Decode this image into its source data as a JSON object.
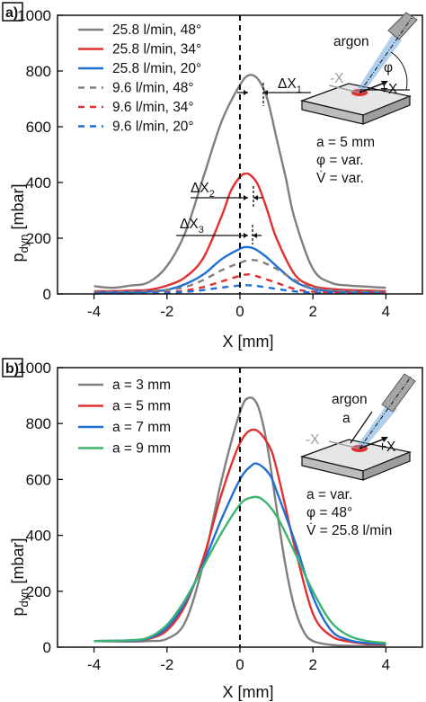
{
  "chart_data": [
    {
      "type": "line",
      "panel": "a)",
      "xlabel": "X [mm]",
      "ylabel": "p",
      "ylabel_sub": "dyn",
      "ylabel_unit": " [mbar]",
      "xlim": [
        -5,
        5
      ],
      "ylim": [
        0,
        1000
      ],
      "xticks": [
        -4,
        -2,
        0,
        2,
        4
      ],
      "yticks": [
        0,
        200,
        400,
        600,
        800,
        1000
      ],
      "x_tick_labels": [
        "-4",
        "-2",
        "0",
        "2",
        "4"
      ],
      "y_tick_labels": [
        "0",
        "200",
        "400",
        "600",
        "800",
        "1000"
      ],
      "reference_line_x": 0,
      "legend_placement": "top-left",
      "series": [
        {
          "name": "25.8 l/min, 48°",
          "color": "#7f7f7f",
          "dash": "solid",
          "x": [
            -4.0,
            -3.5,
            -3.0,
            -2.5,
            -2.0,
            -1.5,
            -1.0,
            -0.5,
            0.0,
            0.25,
            0.5,
            0.75,
            1.0,
            1.25,
            1.5,
            2.0,
            2.5,
            3.0,
            3.5,
            4.0
          ],
          "y": [
            28,
            22,
            30,
            42,
            100,
            220,
            420,
            620,
            750,
            785,
            770,
            700,
            560,
            420,
            270,
            90,
            40,
            30,
            26,
            22
          ]
        },
        {
          "name": "25.8 l/min, 34°",
          "color": "#e03030",
          "dash": "solid",
          "x": [
            -4.0,
            -3.5,
            -3.0,
            -2.5,
            -2.0,
            -1.5,
            -1.0,
            -0.5,
            -0.25,
            0.0,
            0.15,
            0.3,
            0.5,
            0.75,
            1.0,
            1.5,
            2.0,
            2.5,
            3.0,
            3.5,
            4.0
          ],
          "y": [
            10,
            10,
            12,
            15,
            30,
            60,
            130,
            280,
            370,
            420,
            432,
            425,
            390,
            300,
            200,
            70,
            28,
            18,
            14,
            12,
            10
          ]
        },
        {
          "name": "25.8 l/min, 20°",
          "color": "#1f6fd6",
          "dash": "solid",
          "x": [
            -4.0,
            -3.0,
            -2.5,
            -2.0,
            -1.5,
            -1.0,
            -0.5,
            0.0,
            0.2,
            0.4,
            0.7,
            1.0,
            1.5,
            2.0,
            2.5,
            3.0,
            4.0
          ],
          "y": [
            5,
            6,
            8,
            15,
            35,
            70,
            125,
            162,
            168,
            162,
            135,
            100,
            45,
            18,
            10,
            7,
            5
          ]
        },
        {
          "name": "9.6 l/min, 48°",
          "color": "#7f7f7f",
          "dash": "dashed",
          "x": [
            -4.0,
            -3.0,
            -2.0,
            -1.5,
            -1.0,
            -0.5,
            0.0,
            0.3,
            0.6,
            1.0,
            1.5,
            2.0,
            3.0,
            4.0
          ],
          "y": [
            8,
            9,
            14,
            25,
            50,
            85,
            112,
            122,
            115,
            90,
            50,
            22,
            10,
            8
          ]
        },
        {
          "name": "9.6 l/min, 34°",
          "color": "#e03030",
          "dash": "dashed",
          "x": [
            -4.0,
            -3.0,
            -2.0,
            -1.5,
            -1.0,
            -0.5,
            0.0,
            0.25,
            0.5,
            1.0,
            1.5,
            2.0,
            3.0,
            4.0
          ],
          "y": [
            3,
            3,
            6,
            12,
            25,
            45,
            65,
            70,
            62,
            40,
            18,
            8,
            4,
            3
          ]
        },
        {
          "name": "9.6 l/min, 20°",
          "color": "#1f6fd6",
          "dash": "dashed",
          "x": [
            -4.0,
            -3.0,
            -2.0,
            -1.5,
            -1.0,
            -0.5,
            0.0,
            0.25,
            0.5,
            1.0,
            1.5,
            2.0,
            3.0,
            4.0
          ],
          "y": [
            2,
            2,
            4,
            7,
            14,
            23,
            30,
            31,
            28,
            18,
            9,
            5,
            3,
            2
          ]
        }
      ],
      "shift_labels": [
        {
          "base": "ΔX",
          "sub": "1"
        },
        {
          "base": "ΔX",
          "sub": "2"
        },
        {
          "base": "ΔX",
          "sub": "3"
        }
      ],
      "inset": {
        "gas": "argon",
        "axis_minus": "-X",
        "axis_plus": "+X",
        "angle": "φ",
        "params": [
          "a = 5 mm",
          "φ = var.",
          "V̇ = var."
        ]
      },
      "colors": {
        "axes": "#111111",
        "inset_plate": "#d9d9d9",
        "torch": "#a0a0a0",
        "gas_jet": "#6fa8dc",
        "spot": "#e03030"
      }
    },
    {
      "type": "line",
      "panel": "b)",
      "xlabel": "X [mm]",
      "ylabel": "p",
      "ylabel_sub": "dyn",
      "ylabel_unit": " [mbar]",
      "xlim": [
        -5,
        5
      ],
      "ylim": [
        0,
        1000
      ],
      "xticks": [
        -4,
        -2,
        0,
        2,
        4
      ],
      "yticks": [
        0,
        200,
        400,
        600,
        800,
        1000
      ],
      "x_tick_labels": [
        "-4",
        "-2",
        "0",
        "2",
        "4"
      ],
      "y_tick_labels": [
        "0",
        "200",
        "400",
        "600",
        "800",
        "1000"
      ],
      "reference_line_x": 0,
      "legend_placement": "top-left",
      "series": [
        {
          "name": "a = 3 mm",
          "color": "#7f7f7f",
          "dash": "solid",
          "x": [
            -4.0,
            -3.0,
            -2.5,
            -2.0,
            -1.5,
            -1.0,
            -0.5,
            0.0,
            0.25,
            0.5,
            0.75,
            1.0,
            1.25,
            1.5,
            1.75,
            2.0,
            2.5,
            3.0,
            4.0
          ],
          "y": [
            22,
            20,
            22,
            30,
            90,
            300,
            600,
            840,
            892,
            860,
            720,
            500,
            290,
            140,
            55,
            22,
            8,
            5,
            4
          ]
        },
        {
          "name": "a = 5 mm",
          "color": "#e03030",
          "dash": "solid",
          "x": [
            -4.0,
            -3.0,
            -2.5,
            -2.0,
            -1.5,
            -1.0,
            -0.5,
            0.0,
            0.4,
            0.8,
            1.0,
            1.25,
            1.5,
            2.0,
            2.5,
            3.0,
            3.5,
            4.0
          ],
          "y": [
            22,
            24,
            30,
            60,
            150,
            320,
            550,
            730,
            778,
            720,
            640,
            500,
            360,
            120,
            40,
            20,
            12,
            10
          ]
        },
        {
          "name": "a = 7 mm",
          "color": "#1f6fd6",
          "dash": "solid",
          "x": [
            -4.0,
            -3.0,
            -2.5,
            -2.0,
            -1.5,
            -1.0,
            -0.5,
            0.0,
            0.3,
            0.5,
            0.8,
            1.0,
            1.5,
            2.0,
            2.5,
            3.0,
            3.5,
            4.0
          ],
          "y": [
            22,
            24,
            32,
            70,
            160,
            300,
            460,
            600,
            648,
            655,
            620,
            560,
            380,
            180,
            60,
            25,
            15,
            12
          ]
        },
        {
          "name": "a = 9 mm",
          "color": "#3cb371",
          "dash": "solid",
          "x": [
            -4.0,
            -3.0,
            -2.5,
            -2.0,
            -1.5,
            -1.0,
            -0.5,
            0.0,
            0.3,
            0.6,
            1.0,
            1.5,
            2.0,
            2.5,
            3.0,
            3.5,
            4.0
          ],
          "y": [
            22,
            25,
            35,
            80,
            170,
            290,
            410,
            510,
            535,
            530,
            470,
            340,
            200,
            90,
            40,
            22,
            15
          ]
        }
      ],
      "inset": {
        "gas": "argon",
        "distance": "a",
        "axis_minus": "-X",
        "axis_plus": "+X",
        "params": [
          "a = var.",
          "φ = 48°",
          "V̇ = 25.8 l/min"
        ]
      },
      "colors": {
        "axes": "#111111",
        "inset_plate": "#d9d9d9",
        "torch": "#a0a0a0",
        "gas_jet": "#6fa8dc",
        "spot": "#e03030"
      }
    }
  ]
}
